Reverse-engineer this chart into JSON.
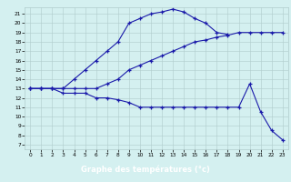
{
  "xlabel": "Graphe des températures (°c)",
  "xlim_min": -0.5,
  "xlim_max": 23.5,
  "ylim_min": 6.5,
  "ylim_max": 21.7,
  "yticks": [
    7,
    8,
    9,
    10,
    11,
    12,
    13,
    14,
    15,
    16,
    17,
    18,
    19,
    20,
    21
  ],
  "xticks": [
    0,
    1,
    2,
    3,
    4,
    5,
    6,
    7,
    8,
    9,
    10,
    11,
    12,
    13,
    14,
    15,
    16,
    17,
    18,
    19,
    20,
    21,
    22,
    23
  ],
  "bg_color": "#d4f0f0",
  "grid_color": "#b0cccc",
  "line_color": "#1a1aaa",
  "xlabel_bg": "#1a1aaa",
  "line1_x": [
    0,
    1,
    2,
    3,
    4,
    5,
    6,
    7,
    8,
    9,
    10,
    11,
    12,
    13,
    14,
    15,
    16,
    17,
    18
  ],
  "line1_y": [
    13,
    13,
    13,
    13,
    14,
    15,
    16,
    17,
    18,
    20,
    20.5,
    21,
    21.2,
    21.5,
    21.2,
    20.5,
    20,
    19,
    18.8
  ],
  "line2_x": [
    0,
    1,
    2,
    3,
    4,
    5,
    6,
    7,
    8,
    9,
    10,
    11,
    12,
    13,
    14,
    15,
    16,
    17,
    18,
    19,
    20,
    21,
    22,
    23
  ],
  "line2_y": [
    13,
    13,
    13,
    13,
    13,
    13,
    13,
    13.5,
    14,
    15,
    15.5,
    16,
    16.5,
    17,
    17.5,
    18,
    18.2,
    18.5,
    18.7,
    19,
    19,
    19,
    19,
    19
  ],
  "line3_x": [
    0,
    1,
    2,
    3,
    4,
    5,
    6,
    7,
    8,
    9,
    10,
    11,
    12,
    13,
    14,
    15,
    16,
    17,
    18,
    19,
    20,
    21,
    22,
    23
  ],
  "line3_y": [
    13,
    13,
    13,
    12.5,
    12.5,
    12.5,
    12,
    12,
    11.8,
    11.5,
    11,
    11,
    11,
    11,
    11,
    11,
    11,
    11,
    11,
    11,
    13.5,
    10.5,
    8.5,
    7.5
  ]
}
